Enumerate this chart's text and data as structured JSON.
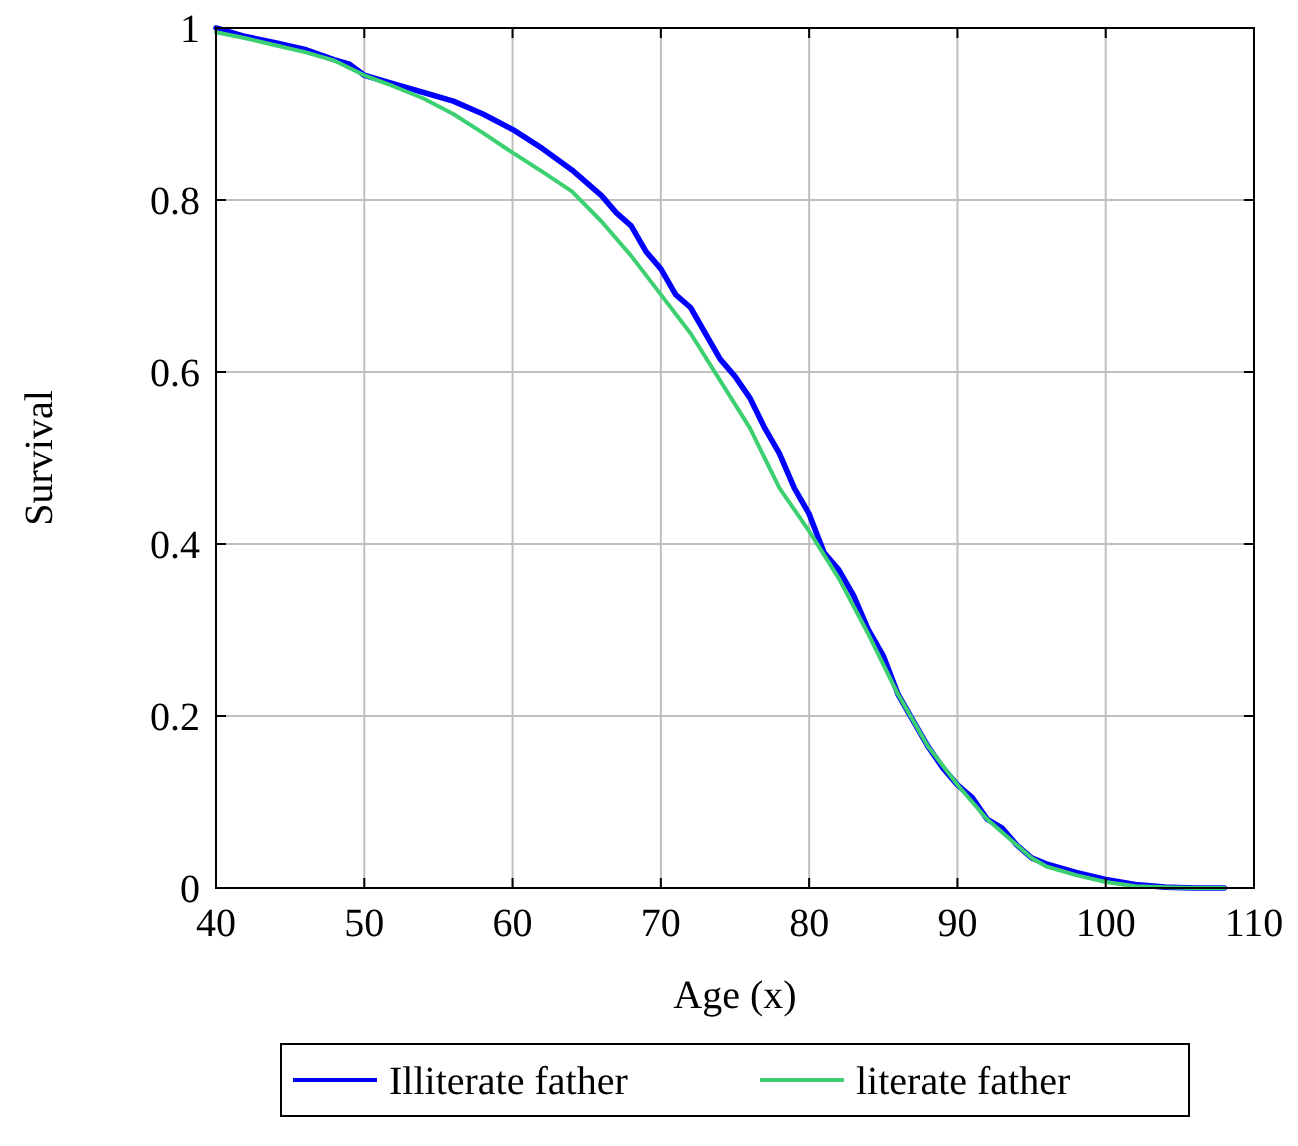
{
  "chart_data": {
    "type": "line",
    "xlabel": "Age (x)",
    "ylabel": "Survival",
    "xlim": [
      40,
      110
    ],
    "xticks": [
      40,
      50,
      60,
      70,
      80,
      90,
      100,
      110
    ],
    "ylim": [
      0,
      1
    ],
    "yticks": [
      0,
      0.2,
      0.4,
      0.6,
      0.8,
      1
    ],
    "grid": true,
    "legend": "bottom",
    "marker": "none",
    "line_style": "solid",
    "series": [
      {
        "name": "Illiterate father",
        "color": "#0000ff",
        "x": [
          40,
          42,
          44,
          46,
          48,
          49,
          50,
          52,
          54,
          56,
          58,
          60,
          62,
          64,
          66,
          67,
          68,
          69,
          70,
          71,
          72,
          73,
          74,
          75,
          76,
          77,
          78,
          79,
          80,
          81,
          82,
          83,
          84,
          85,
          86,
          87,
          88,
          89,
          90,
          91,
          92,
          93,
          94,
          95,
          96,
          98,
          100,
          102,
          104,
          106,
          108
        ],
        "values": [
          1.0,
          0.99,
          0.983,
          0.975,
          0.963,
          0.958,
          0.945,
          0.935,
          0.925,
          0.915,
          0.9,
          0.882,
          0.86,
          0.835,
          0.805,
          0.785,
          0.77,
          0.74,
          0.72,
          0.69,
          0.675,
          0.645,
          0.615,
          0.595,
          0.57,
          0.535,
          0.505,
          0.465,
          0.435,
          0.39,
          0.37,
          0.34,
          0.3,
          0.27,
          0.225,
          0.195,
          0.165,
          0.14,
          0.12,
          0.105,
          0.08,
          0.07,
          0.05,
          0.035,
          0.028,
          0.018,
          0.01,
          0.004,
          0.001,
          0,
          0
        ]
      },
      {
        "name": "literate father",
        "color": "#3cd070",
        "x": [
          40,
          42,
          44,
          46,
          48,
          50,
          52,
          54,
          56,
          58,
          60,
          62,
          64,
          66,
          68,
          70,
          72,
          74,
          76,
          78,
          80,
          82,
          84,
          86,
          88,
          90,
          92,
          94,
          95,
          96,
          98,
          100,
          102,
          104,
          106,
          108
        ],
        "values": [
          0.995,
          0.988,
          0.98,
          0.972,
          0.962,
          0.945,
          0.932,
          0.918,
          0.9,
          0.878,
          0.855,
          0.833,
          0.81,
          0.775,
          0.735,
          0.69,
          0.645,
          0.59,
          0.535,
          0.465,
          0.415,
          0.36,
          0.295,
          0.225,
          0.165,
          0.12,
          0.08,
          0.05,
          0.035,
          0.025,
          0.015,
          0.007,
          0.002,
          0.001,
          0,
          0
        ]
      }
    ]
  }
}
